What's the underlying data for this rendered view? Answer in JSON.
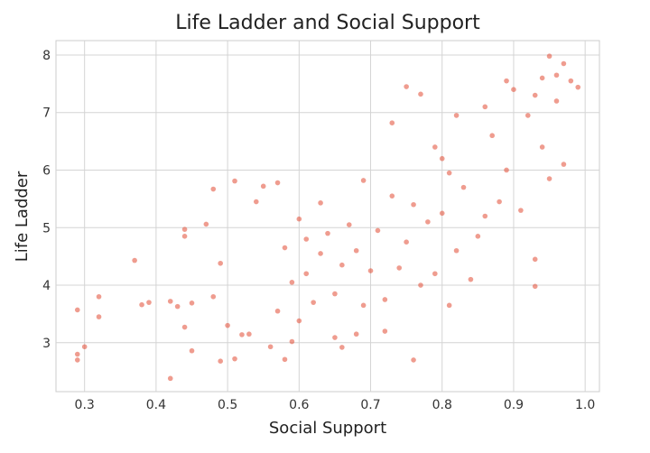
{
  "chart_data": {
    "type": "scatter",
    "title": "Life Ladder and Social Support",
    "xlabel": "Social Support",
    "ylabel": "Life Ladder",
    "xlim": [
      0.26,
      1.02
    ],
    "ylim": [
      2.15,
      8.25
    ],
    "xticks": [
      0.3,
      0.4,
      0.5,
      0.6,
      0.7,
      0.8,
      0.9,
      1.0
    ],
    "xtick_labels": [
      "0.3",
      "0.4",
      "0.5",
      "0.6",
      "0.7",
      "0.8",
      "0.9",
      "1.0"
    ],
    "yticks": [
      3,
      4,
      5,
      6,
      7,
      8
    ],
    "ytick_labels": [
      "3",
      "4",
      "5",
      "6",
      "7",
      "8"
    ],
    "grid": true,
    "marker_color": "#e24a33",
    "marker_opacity": 0.55,
    "points": [
      [
        0.29,
        3.57
      ],
      [
        0.29,
        2.8
      ],
      [
        0.29,
        2.7
      ],
      [
        0.3,
        2.93
      ],
      [
        0.32,
        3.8
      ],
      [
        0.32,
        3.45
      ],
      [
        0.37,
        4.43
      ],
      [
        0.38,
        3.66
      ],
      [
        0.39,
        3.7
      ],
      [
        0.42,
        2.38
      ],
      [
        0.42,
        3.72
      ],
      [
        0.43,
        3.63
      ],
      [
        0.44,
        4.85
      ],
      [
        0.44,
        4.97
      ],
      [
        0.44,
        3.27
      ],
      [
        0.45,
        2.86
      ],
      [
        0.45,
        3.69
      ],
      [
        0.47,
        5.06
      ],
      [
        0.48,
        5.67
      ],
      [
        0.48,
        3.8
      ],
      [
        0.49,
        2.68
      ],
      [
        0.49,
        4.38
      ],
      [
        0.5,
        3.3
      ],
      [
        0.51,
        5.81
      ],
      [
        0.51,
        2.72
      ],
      [
        0.52,
        3.14
      ],
      [
        0.53,
        3.15
      ],
      [
        0.54,
        5.45
      ],
      [
        0.55,
        5.72
      ],
      [
        0.56,
        2.93
      ],
      [
        0.57,
        5.78
      ],
      [
        0.58,
        2.71
      ],
      [
        0.59,
        3.02
      ],
      [
        0.6,
        3.38
      ],
      [
        0.61,
        4.8
      ],
      [
        0.63,
        5.43
      ],
      [
        0.65,
        3.09
      ],
      [
        0.66,
        2.92
      ],
      [
        0.68,
        3.15
      ],
      [
        0.69,
        5.82
      ],
      [
        0.72,
        3.2
      ],
      [
        0.73,
        6.82
      ],
      [
        0.75,
        7.45
      ],
      [
        0.76,
        2.7
      ],
      [
        0.77,
        7.32
      ],
      [
        0.79,
        6.4
      ],
      [
        0.8,
        6.2
      ],
      [
        0.81,
        3.65
      ],
      [
        0.82,
        6.95
      ],
      [
        0.86,
        7.1
      ],
      [
        0.89,
        7.55
      ],
      [
        0.93,
        3.98
      ],
      [
        0.93,
        4.45
      ],
      [
        0.96,
        7.65
      ],
      [
        0.97,
        7.85
      ],
      [
        0.99,
        7.44
      ],
      [
        0.98,
        7.55
      ],
      [
        0.95,
        7.98
      ],
      [
        0.96,
        7.2
      ],
      [
        0.94,
        7.6
      ],
      [
        0.97,
        6.1
      ],
      [
        0.95,
        5.85
      ],
      [
        0.94,
        6.4
      ],
      [
        0.93,
        7.3
      ],
      [
        0.92,
        6.95
      ],
      [
        0.91,
        5.3
      ],
      [
        0.9,
        7.4
      ],
      [
        0.89,
        6.0
      ],
      [
        0.88,
        5.45
      ],
      [
        0.87,
        6.6
      ],
      [
        0.86,
        5.2
      ],
      [
        0.85,
        4.85
      ],
      [
        0.84,
        4.1
      ],
      [
        0.83,
        5.7
      ],
      [
        0.82,
        4.6
      ],
      [
        0.81,
        5.95
      ],
      [
        0.8,
        5.25
      ],
      [
        0.79,
        4.2
      ],
      [
        0.78,
        5.1
      ],
      [
        0.77,
        4.0
      ],
      [
        0.76,
        5.4
      ],
      [
        0.75,
        4.75
      ],
      [
        0.74,
        4.3
      ],
      [
        0.73,
        5.55
      ],
      [
        0.72,
        3.75
      ],
      [
        0.71,
        4.95
      ],
      [
        0.7,
        4.25
      ],
      [
        0.69,
        3.65
      ],
      [
        0.68,
        4.6
      ],
      [
        0.67,
        5.05
      ],
      [
        0.66,
        4.35
      ],
      [
        0.65,
        3.85
      ],
      [
        0.64,
        4.9
      ],
      [
        0.63,
        4.55
      ],
      [
        0.62,
        3.7
      ],
      [
        0.61,
        4.2
      ],
      [
        0.6,
        5.15
      ],
      [
        0.59,
        4.05
      ],
      [
        0.58,
        4.65
      ],
      [
        0.57,
        3.55
      ]
    ]
  }
}
